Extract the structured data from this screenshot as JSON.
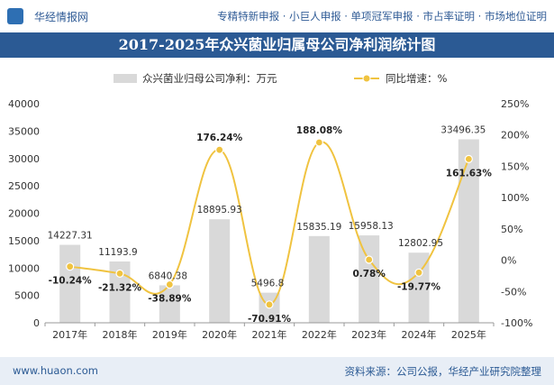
{
  "header": {
    "logo_text": "华经情报网",
    "services": "专精特新申报 · 小巨人申报 · 单项冠军申报 · 市占率证明 · 市场地位证明"
  },
  "title": "2017-2025年众兴菌业归属母公司净利润统计图",
  "footer": {
    "url": "www.huaon.com",
    "source": "资料来源：公司公报，华经产业研究院整理"
  },
  "colors": {
    "bar": "#d9d9d9",
    "line": "#f0c340",
    "brand": "#2b5a94"
  },
  "chart_data": {
    "type": "bar",
    "categories": [
      "2017年",
      "2018年",
      "2019年",
      "2020年",
      "2021年",
      "2022年",
      "2023年",
      "2024年",
      "2025年"
    ],
    "series": [
      {
        "name": "众兴菌业归母公司净利：万元",
        "type": "bar",
        "axis": "left",
        "values": [
          14227.31,
          11193.9,
          6840.38,
          18895.93,
          5496.8,
          15835.19,
          15958.13,
          12802.95,
          33496.35
        ],
        "labels": [
          "14227.31",
          "11193.9",
          "6840.38",
          "18895.93",
          "5496.8",
          "15835.19",
          "15958.13",
          "12802.95",
          "33496.35"
        ]
      },
      {
        "name": "同比增速：%",
        "type": "line",
        "axis": "right",
        "values": [
          -10.24,
          -21.32,
          -38.89,
          176.24,
          -70.91,
          188.08,
          0.78,
          -19.77,
          161.63
        ],
        "labels": [
          "-10.24%",
          "-21.32%",
          "-38.89%",
          "176.24%",
          "-70.91%",
          "188.08%",
          "0.78%",
          "-19.77%",
          "161.63%"
        ]
      }
    ],
    "y_left": {
      "min": 0,
      "max": 40000,
      "ticks": [
        "0",
        "5000",
        "10000",
        "15000",
        "20000",
        "25000",
        "30000",
        "35000",
        "40000"
      ]
    },
    "y_right": {
      "min": -100,
      "max": 250,
      "ticks": [
        "-100%",
        "-50%",
        "0%",
        "50%",
        "100%",
        "150%",
        "200%",
        "250%"
      ]
    },
    "legend_position": "top",
    "grid": false
  }
}
